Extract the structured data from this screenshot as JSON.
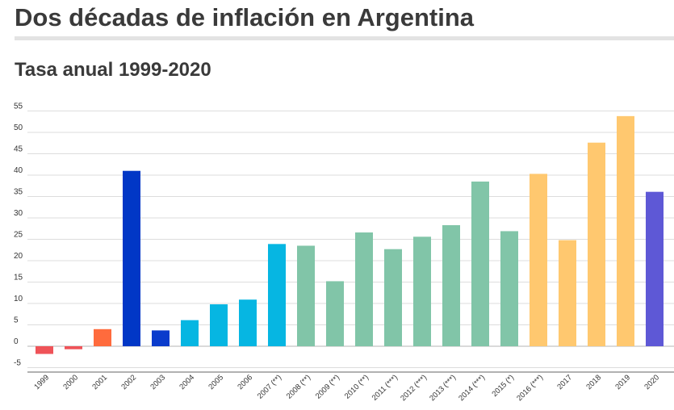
{
  "header": {
    "title": "Dos décadas de inflación en Argentina",
    "subtitle": "Tasa anual 1999-2020"
  },
  "chart_data": {
    "type": "bar",
    "title": "Dos décadas de inflación en Argentina",
    "subtitle": "Tasa anual 1999-2020",
    "xlabel": "",
    "ylabel": "",
    "ylim": [
      -5,
      55
    ],
    "yticks": [
      -5,
      0,
      5,
      10,
      15,
      20,
      25,
      30,
      35,
      40,
      45,
      50,
      55
    ],
    "grid": true,
    "legend": "none",
    "categories": [
      "1999",
      "2000",
      "2001",
      "2002",
      "2003",
      "2004",
      "2005",
      "2006",
      "2007 (**)",
      "2008 (**)",
      "2009 (**)",
      "2010 (**)",
      "2011 (***)",
      "2012 (***)",
      "2013 (***)",
      "2014 (***)",
      "2015 (*)",
      "2016 (***)",
      "2017",
      "2018",
      "2019",
      "2020"
    ],
    "values": [
      -1.8,
      -0.7,
      4.0,
      41.0,
      3.7,
      6.1,
      9.8,
      10.9,
      23.9,
      23.5,
      15.2,
      26.6,
      22.7,
      25.6,
      28.3,
      38.5,
      26.9,
      40.3,
      24.8,
      47.6,
      53.8,
      36.1
    ],
    "colors": [
      "#ef5358",
      "#ef5358",
      "#ff6b3d",
      "#0137c6",
      "#0a3ccc",
      "#06b6e2",
      "#06b6e2",
      "#06b6e2",
      "#06b6e2",
      "#81c5a8",
      "#81c5a8",
      "#81c5a8",
      "#81c5a8",
      "#81c5a8",
      "#81c5a8",
      "#81c5a8",
      "#81c5a8",
      "#ffc86f",
      "#ffc86f",
      "#ffc86f",
      "#ffc86f",
      "#5e58d6"
    ]
  }
}
